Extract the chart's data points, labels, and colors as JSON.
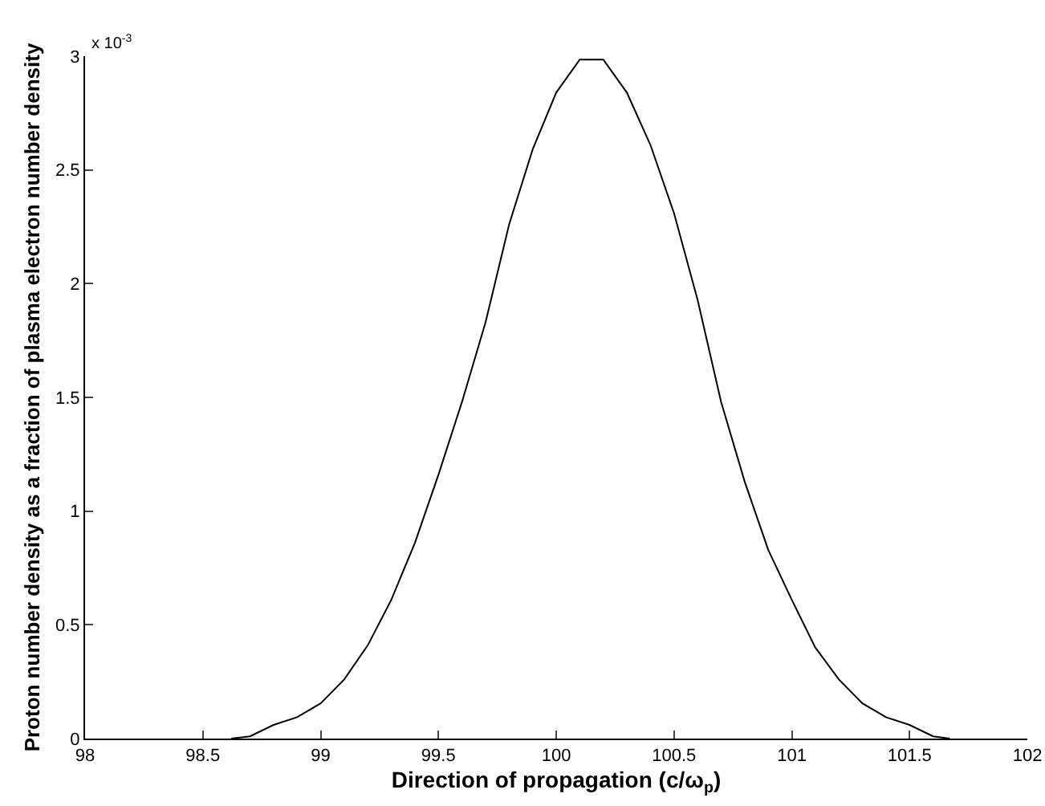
{
  "chart_data": {
    "type": "line",
    "xlabel": "Direction of propagation (c/ω$_{p}$)",
    "ylabel": "Proton number density as a fraction of plasma electron number density",
    "annotations": [
      "x 10$^{-3}$"
    ],
    "x": [
      98.62,
      98.7,
      98.8,
      98.9,
      99.0,
      99.1,
      99.2,
      99.3,
      99.4,
      99.5,
      99.6,
      99.7,
      99.8,
      99.9,
      100.0,
      100.1,
      100.2,
      100.3,
      100.4,
      100.5,
      100.6,
      100.7,
      100.8,
      100.9,
      101.0,
      101.1,
      101.2,
      101.3,
      101.4,
      101.5,
      101.6,
      101.67
    ],
    "series": [
      {
        "color": "#000000",
        "values": [
          0,
          0.01,
          0.06,
          0.094,
          0.155,
          0.26,
          0.41,
          0.61,
          0.86,
          1.16,
          1.48,
          1.83,
          2.26,
          2.59,
          2.84,
          2.985,
          2.985,
          2.84,
          2.61,
          2.31,
          1.93,
          1.48,
          1.13,
          0.83,
          0.61,
          0.4,
          0.26,
          0.155,
          0.094,
          0.06,
          0.01,
          0
        ]
      }
    ],
    "xlim": [
      98,
      102
    ],
    "xticks": [
      98,
      98.5,
      99,
      99.5,
      100,
      100.5,
      101,
      101.5,
      102
    ],
    "ylim": [
      0,
      3
    ],
    "yticks": [
      0,
      0.5,
      1,
      1.5,
      2,
      2.5,
      3
    ]
  }
}
